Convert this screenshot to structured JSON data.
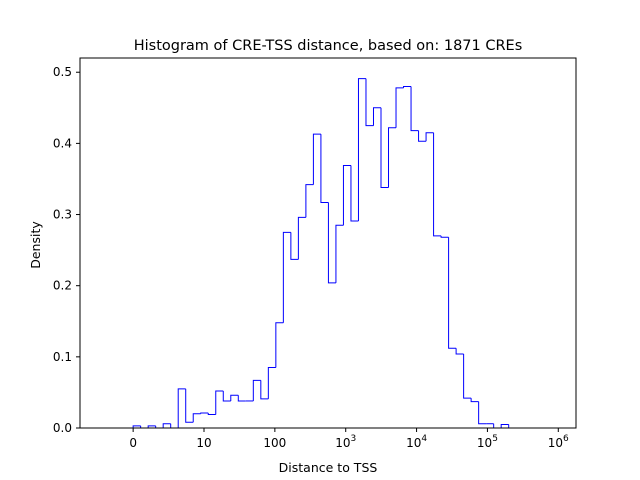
{
  "chart_data": {
    "type": "histogram",
    "title": "Histogram of CRE-TSS distance, based on: 1871 CREs",
    "xlabel": "Distance to TSS",
    "ylabel": "Density",
    "x_scale": "symlog",
    "xlim": [
      -0.75,
      6.25
    ],
    "ylim": [
      0,
      0.52
    ],
    "x_ticks": [
      {
        "pos": 0,
        "label": "0",
        "sup": ""
      },
      {
        "pos": 1,
        "label": "10",
        "sup": ""
      },
      {
        "pos": 2,
        "label": "100",
        "sup": ""
      },
      {
        "pos": 3,
        "label": "10",
        "sup": "3"
      },
      {
        "pos": 4,
        "label": "10",
        "sup": "4"
      },
      {
        "pos": 5,
        "label": "10",
        "sup": "5"
      },
      {
        "pos": 6,
        "label": "10",
        "sup": "6"
      }
    ],
    "y_ticks": [
      {
        "value": 0.0,
        "label": "0.0"
      },
      {
        "value": 0.1,
        "label": "0.1"
      },
      {
        "value": 0.2,
        "label": "0.2"
      },
      {
        "value": 0.3,
        "label": "0.3"
      },
      {
        "value": 0.4,
        "label": "0.4"
      },
      {
        "value": 0.5,
        "label": "0.5"
      }
    ],
    "bins_log10_start": 0.0,
    "bin_width_log10": 0.106,
    "densities": [
      0.003,
      0.0,
      0.003,
      0.0,
      0.006,
      0.0,
      0.055,
      0.008,
      0.02,
      0.021,
      0.019,
      0.052,
      0.038,
      0.046,
      0.038,
      0.038,
      0.067,
      0.041,
      0.085,
      0.148,
      0.275,
      0.237,
      0.296,
      0.342,
      0.413,
      0.317,
      0.204,
      0.285,
      0.369,
      0.291,
      0.491,
      0.425,
      0.45,
      0.338,
      0.422,
      0.478,
      0.48,
      0.418,
      0.403,
      0.415,
      0.27,
      0.268,
      0.112,
      0.104,
      0.042,
      0.037,
      0.006,
      0.006,
      0.0,
      0.005
    ],
    "line_color": "#0000ff",
    "grid": false,
    "legend": "none"
  }
}
